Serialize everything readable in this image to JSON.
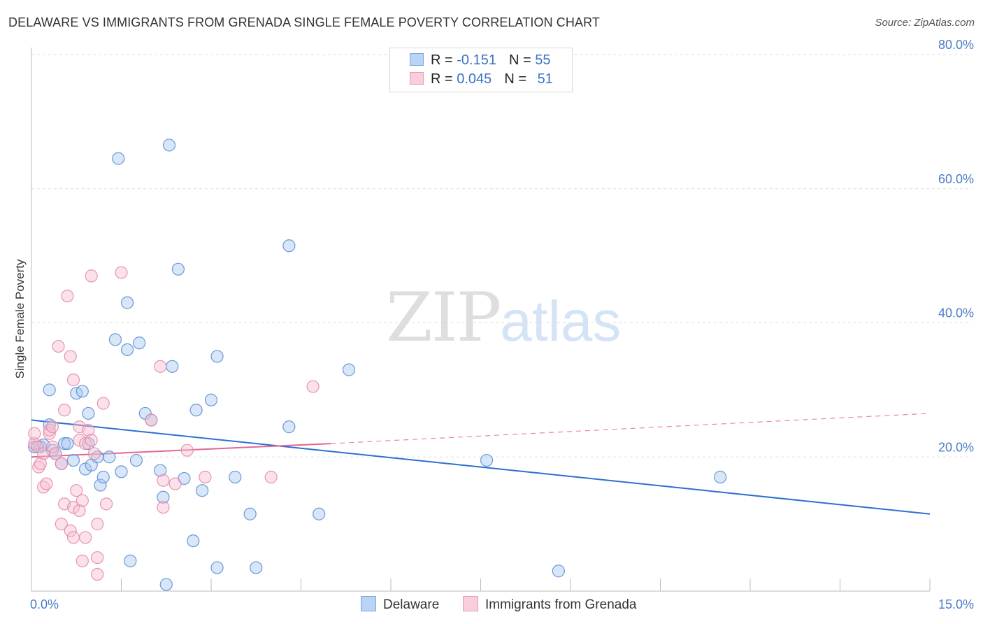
{
  "title": "DELAWARE VS IMMIGRANTS FROM GRENADA SINGLE FEMALE POVERTY CORRELATION CHART",
  "source": "Source: ZipAtlas.com",
  "watermark": {
    "part1": "ZIP",
    "part2": "atlas"
  },
  "colors": {
    "blue_fill": "#a8c8f0",
    "blue_stroke": "#5b8fd6",
    "blue_line": "#2e6fd1",
    "pink_fill": "#f6bfd0",
    "pink_stroke": "#e68aa8",
    "pink_line": "#e06892",
    "grid": "#dddddd",
    "axis": "#bbbbbb"
  },
  "legend": {
    "rows": [
      {
        "r_label": "R = ",
        "r_value": "-0.151",
        "n_label": "N = ",
        "n_value": "55"
      },
      {
        "r_label": "R = ",
        "r_value": "0.045",
        "n_label": "N = ",
        "n_value": "51"
      }
    ]
  },
  "bottom_legend": {
    "series1": "Delaware",
    "series2": "Immigrants from Grenada"
  },
  "chart_data": {
    "type": "scatter",
    "title": "DELAWARE VS IMMIGRANTS FROM GRENADA SINGLE FEMALE POVERTY CORRELATION CHART",
    "xlabel": "",
    "ylabel": "Single Female Poverty",
    "xlim": [
      0,
      15
    ],
    "ylim": [
      0,
      80
    ],
    "x_tick_labels": [
      {
        "value": 0,
        "label": "0.0%"
      },
      {
        "value": 15,
        "label": "15.0%"
      }
    ],
    "x_minor_ticks": [
      1.5,
      3.0,
      4.5,
      6.0,
      7.5,
      9.0,
      10.5,
      12.0,
      13.5
    ],
    "y_ticks": [
      {
        "value": 20,
        "label": "20.0%"
      },
      {
        "value": 40,
        "label": "40.0%"
      },
      {
        "value": 60,
        "label": "60.0%"
      },
      {
        "value": 80,
        "label": "80.0%"
      }
    ],
    "grid": true,
    "legend_position": "top-center",
    "series": [
      {
        "name": "Delaware",
        "R": -0.151,
        "N": 55,
        "trend": {
          "x0": 0,
          "y0": 25.5,
          "x1": 15,
          "y1": 11.5
        },
        "points": [
          [
            0.05,
            21.5
          ],
          [
            0.1,
            21.5
          ],
          [
            0.15,
            21.5
          ],
          [
            0.2,
            21.8
          ],
          [
            0.3,
            24.8
          ],
          [
            0.35,
            21.0
          ],
          [
            0.4,
            20.5
          ],
          [
            0.5,
            19.0
          ],
          [
            0.55,
            22.0
          ],
          [
            0.6,
            22.0
          ],
          [
            0.7,
            19.5
          ],
          [
            0.75,
            29.5
          ],
          [
            0.85,
            29.8
          ],
          [
            0.9,
            18.2
          ],
          [
            0.95,
            22.0
          ],
          [
            0.95,
            26.5
          ],
          [
            1.0,
            18.8
          ],
          [
            1.15,
            15.8
          ],
          [
            1.2,
            17.0
          ],
          [
            1.1,
            20.0
          ],
          [
            1.3,
            20.0
          ],
          [
            1.4,
            37.5
          ],
          [
            1.45,
            64.5
          ],
          [
            1.5,
            17.8
          ],
          [
            1.6,
            43.0
          ],
          [
            1.6,
            36.0
          ],
          [
            1.65,
            4.5
          ],
          [
            1.75,
            19.5
          ],
          [
            1.8,
            37.0
          ],
          [
            1.9,
            26.5
          ],
          [
            2.0,
            25.5
          ],
          [
            2.15,
            18.0
          ],
          [
            2.2,
            14.0
          ],
          [
            2.25,
            1.0
          ],
          [
            2.3,
            66.5
          ],
          [
            2.35,
            33.5
          ],
          [
            2.45,
            48.0
          ],
          [
            2.55,
            16.8
          ],
          [
            2.7,
            7.5
          ],
          [
            2.75,
            27.0
          ],
          [
            2.85,
            15.0
          ],
          [
            3.0,
            28.5
          ],
          [
            3.1,
            35.0
          ],
          [
            3.1,
            3.5
          ],
          [
            3.4,
            17.0
          ],
          [
            3.65,
            11.5
          ],
          [
            3.75,
            3.5
          ],
          [
            4.3,
            51.5
          ],
          [
            4.3,
            24.5
          ],
          [
            4.8,
            11.5
          ],
          [
            5.3,
            33.0
          ],
          [
            7.6,
            19.5
          ],
          [
            8.8,
            3.0
          ],
          [
            11.5,
            17.0
          ],
          [
            0.3,
            30.0
          ]
        ]
      },
      {
        "name": "Immigrants from Grenada",
        "R": 0.045,
        "N": 51,
        "trend": {
          "x0": 0,
          "y0": 20.0,
          "x1": 5.0,
          "y1": 22.0,
          "dash_x1": 15,
          "dash_y1": 26.5
        },
        "points": [
          [
            0.05,
            22.0
          ],
          [
            0.1,
            21.5
          ],
          [
            0.12,
            18.5
          ],
          [
            0.15,
            19.0
          ],
          [
            0.2,
            20.5
          ],
          [
            0.2,
            15.5
          ],
          [
            0.25,
            16.0
          ],
          [
            0.3,
            23.5
          ],
          [
            0.3,
            24.0
          ],
          [
            0.35,
            21.5
          ],
          [
            0.35,
            24.5
          ],
          [
            0.4,
            20.5
          ],
          [
            0.45,
            36.5
          ],
          [
            0.5,
            19.0
          ],
          [
            0.5,
            10.0
          ],
          [
            0.55,
            27.0
          ],
          [
            0.55,
            13.0
          ],
          [
            0.6,
            44.0
          ],
          [
            0.65,
            9.0
          ],
          [
            0.65,
            35.0
          ],
          [
            0.7,
            31.5
          ],
          [
            0.7,
            12.5
          ],
          [
            0.75,
            15.0
          ],
          [
            0.7,
            8.0
          ],
          [
            0.8,
            24.5
          ],
          [
            0.8,
            12.0
          ],
          [
            0.8,
            22.5
          ],
          [
            0.85,
            4.5
          ],
          [
            0.85,
            13.5
          ],
          [
            0.9,
            8.0
          ],
          [
            0.9,
            22.0
          ],
          [
            0.95,
            24.0
          ],
          [
            1.0,
            47.0
          ],
          [
            1.0,
            22.5
          ],
          [
            1.05,
            20.5
          ],
          [
            1.1,
            5.0
          ],
          [
            1.1,
            2.5
          ],
          [
            1.1,
            10.0
          ],
          [
            1.2,
            28.0
          ],
          [
            1.25,
            13.0
          ],
          [
            1.5,
            47.5
          ],
          [
            2.0,
            25.5
          ],
          [
            2.15,
            33.5
          ],
          [
            2.2,
            16.5
          ],
          [
            2.2,
            12.5
          ],
          [
            2.4,
            16.0
          ],
          [
            2.6,
            21.0
          ],
          [
            2.9,
            17.0
          ],
          [
            4.0,
            17.0
          ],
          [
            4.7,
            30.5
          ],
          [
            0.05,
            23.5
          ]
        ]
      }
    ]
  }
}
